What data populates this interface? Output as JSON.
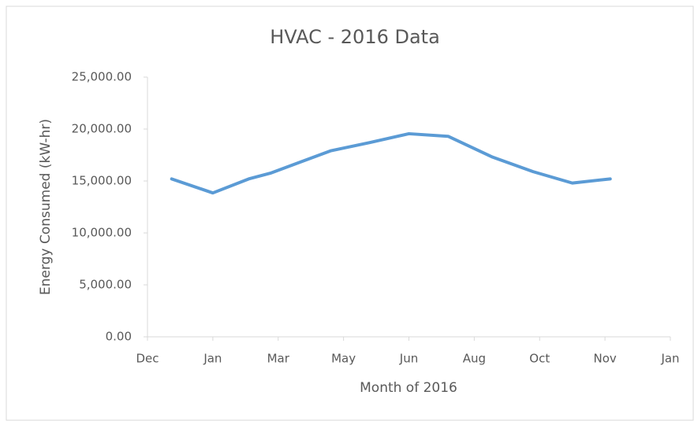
{
  "chart_data": {
    "type": "line",
    "title": "HVAC - 2016 Data",
    "x_label": "Month of 2016",
    "y_label": "Energy Consumed (kW-hr)",
    "series": [
      {
        "name": "Energy Consumed (kW-hr)",
        "color": "#5b9bd5",
        "x": [
          0.37,
          1.0,
          1.55,
          1.88,
          2.8,
          3.4,
          4.0,
          4.6,
          5.28,
          5.9,
          6.5,
          7.08
        ],
        "values": [
          15200,
          13850,
          15200,
          15750,
          17900,
          18700,
          19550,
          19300,
          17300,
          15900,
          14800,
          15200
        ]
      }
    ],
    "xlim": [
      0,
      8
    ],
    "xticks": [
      {
        "value": 0,
        "label": "Dec"
      },
      {
        "value": 1,
        "label": "Jan"
      },
      {
        "value": 2,
        "label": "Mar"
      },
      {
        "value": 3,
        "label": "May"
      },
      {
        "value": 4,
        "label": "Jun"
      },
      {
        "value": 5,
        "label": "Aug"
      },
      {
        "value": 6,
        "label": "Oct"
      },
      {
        "value": 7,
        "label": "Nov"
      },
      {
        "value": 8,
        "label": "Jan"
      }
    ],
    "ylim": [
      0,
      25000
    ],
    "yticks": [
      {
        "value": 0,
        "label": "0.00"
      },
      {
        "value": 5000,
        "label": "5,000.00"
      },
      {
        "value": 10000,
        "label": "10,000.00"
      },
      {
        "value": 15000,
        "label": "15,000.00"
      },
      {
        "value": 20000,
        "label": "20,000.00"
      },
      {
        "value": 25000,
        "label": "25,000.00"
      }
    ],
    "grid": false
  }
}
